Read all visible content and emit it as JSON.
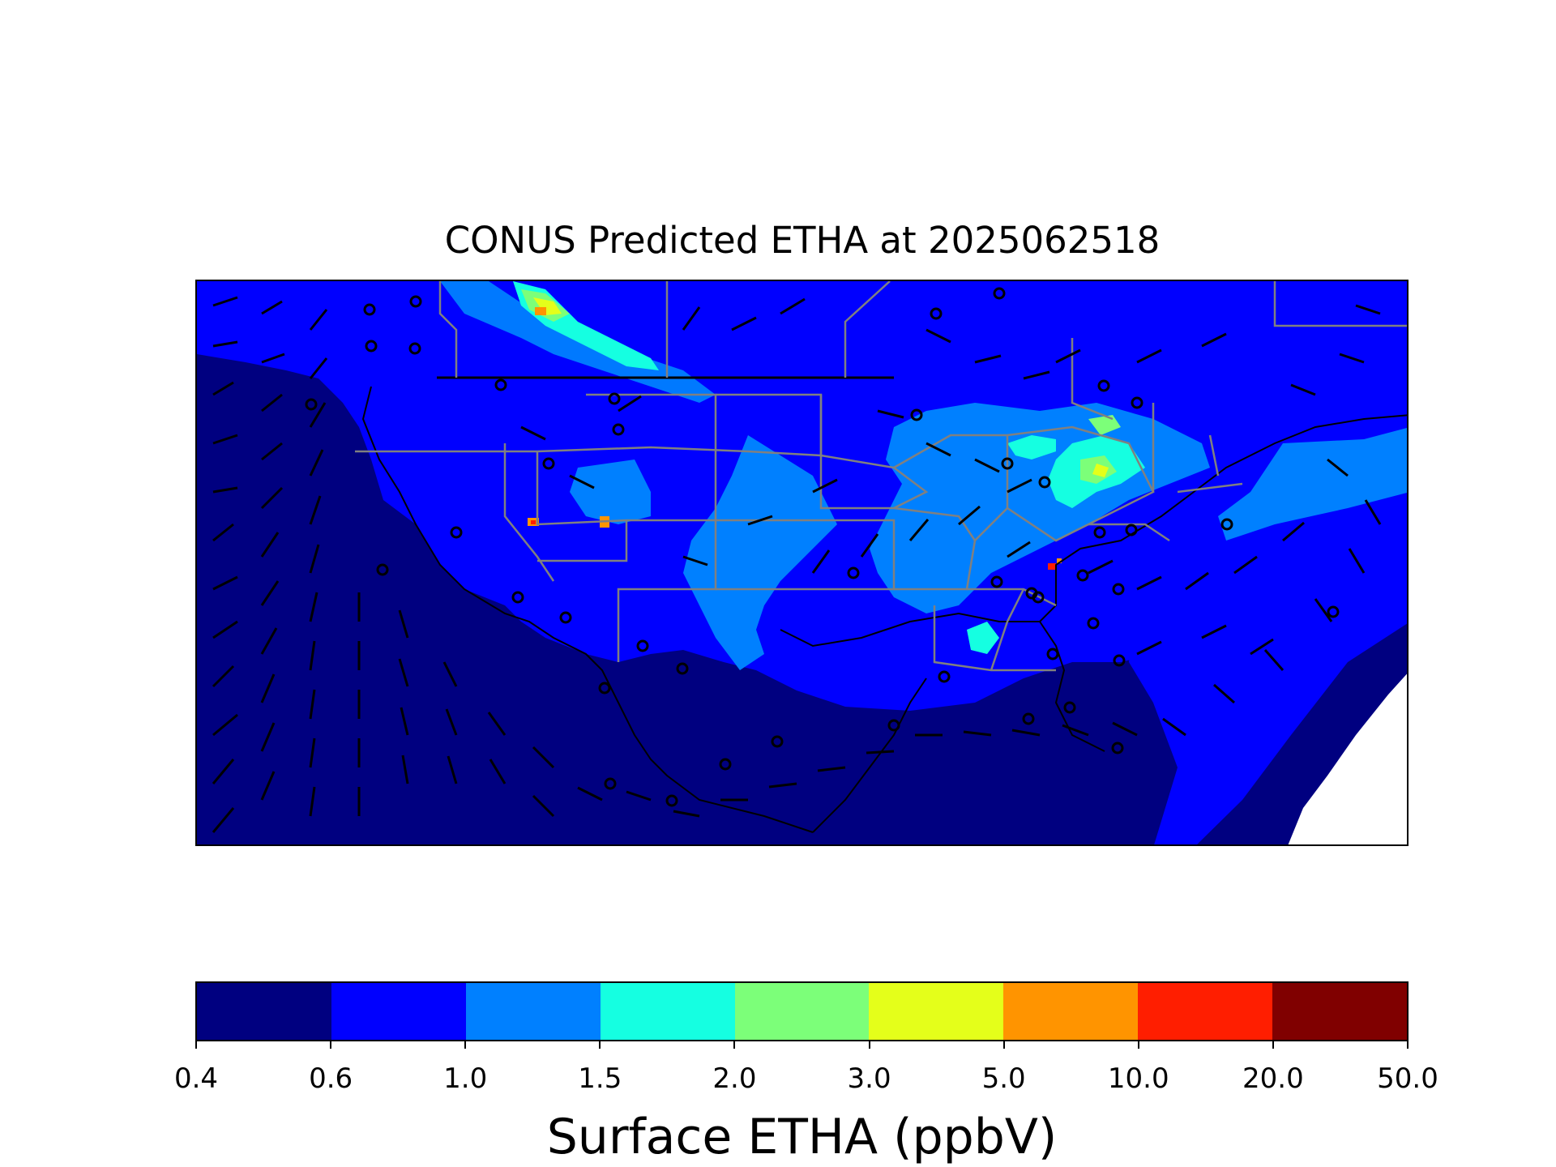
{
  "title": "CONUS Predicted ETHA at 2025062518",
  "map": {
    "region": "CONUS",
    "field": "Surface ETHA",
    "overlays": [
      "wind-barbs",
      "state-borders",
      "coastlines"
    ],
    "background_color": "#000080"
  },
  "colorbar": {
    "label": "Surface ETHA (ppbV)",
    "levels": [
      "0.4",
      "0.6",
      "1.0",
      "1.5",
      "2.0",
      "3.0",
      "5.0",
      "10.0",
      "20.0",
      "50.0"
    ],
    "colors": [
      "#000080",
      "#0000ff",
      "#0080ff",
      "#15ffe1",
      "#7cff79",
      "#e4ff1a",
      "#ff9400",
      "#ff1e00",
      "#800000"
    ]
  },
  "colors": {
    "state_borders": "#808080",
    "coastlines": "#000000",
    "barbs": "#000000"
  }
}
